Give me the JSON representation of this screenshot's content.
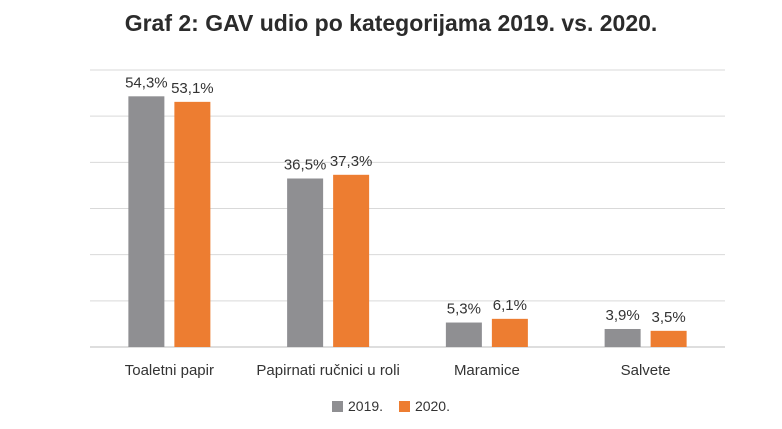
{
  "chart_data": {
    "type": "bar",
    "title": "Graf 2: GAV udio po kategorijama 2019. vs. 2020.",
    "categories": [
      "Toaletni papir",
      "Papirnati ručnici u roli",
      "Maramice",
      "Salvete"
    ],
    "series": [
      {
        "name": "2019.",
        "color": "#8f8f92",
        "values": [
          54.3,
          36.5,
          5.3,
          3.9
        ],
        "labels": [
          "54,3%",
          "36,5%",
          "5,3%",
          "3,9%"
        ]
      },
      {
        "name": "2020.",
        "color": "#ed7d31",
        "values": [
          53.1,
          37.3,
          6.1,
          3.5
        ],
        "labels": [
          "53,1%",
          "37,3%",
          "6,1%",
          "3,5%"
        ]
      }
    ],
    "ylim": [
      0,
      60
    ],
    "grid": true,
    "legend_position": "bottom"
  }
}
